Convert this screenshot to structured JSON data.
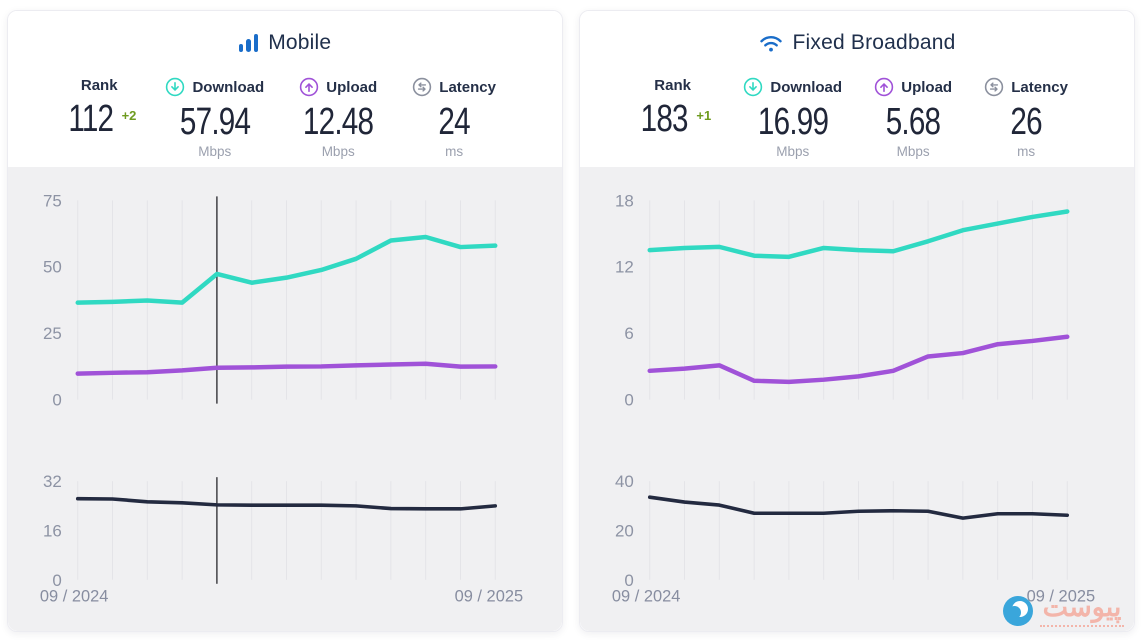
{
  "colors": {
    "teal": "#30d9c2",
    "purple": "#a052d8",
    "latency_navy": "#232a40",
    "blue_icon": "#1a6dc9",
    "green_delta": "#6e9b1f",
    "chart_bg": "#f0f0f2"
  },
  "panels": [
    {
      "title": "Mobile",
      "title_icon": "signal-bars-icon",
      "stats": [
        {
          "label": "Rank",
          "value": "112",
          "delta": "+2"
        },
        {
          "label": "Download",
          "value": "57.94",
          "unit": "Mbps",
          "icon": "download-circle-icon"
        },
        {
          "label": "Upload",
          "value": "12.48",
          "unit": "Mbps",
          "icon": "upload-circle-icon"
        },
        {
          "label": "Latency",
          "value": "24",
          "unit": "ms",
          "icon": "latency-arrows-icon"
        }
      ]
    },
    {
      "title": "Fixed Broadband",
      "title_icon": "wifi-icon",
      "stats": [
        {
          "label": "Rank",
          "value": "183",
          "delta": "+1"
        },
        {
          "label": "Download",
          "value": "16.99",
          "unit": "Mbps",
          "icon": "download-circle-icon"
        },
        {
          "label": "Upload",
          "value": "5.68",
          "unit": "Mbps",
          "icon": "upload-circle-icon"
        },
        {
          "label": "Latency",
          "value": "26",
          "unit": "ms",
          "icon": "latency-arrows-icon"
        }
      ]
    }
  ],
  "chart_data": [
    {
      "type": "line",
      "kind": "speed",
      "panel": "Mobile",
      "x_unit": "month",
      "x_range": [
        "09 / 2024",
        "09 / 2025"
      ],
      "ylim": [
        0,
        75
      ],
      "yticks": [
        75,
        50,
        25,
        0
      ],
      "grid": true,
      "crosshair_index": 4,
      "series": [
        {
          "name": "Download (Mbps)",
          "color": "#30d9c2",
          "values": [
            36.5,
            36.8,
            37.3,
            36.5,
            47.3,
            44.0,
            45.9,
            48.8,
            53.0,
            59.9,
            61.2,
            57.4,
            57.94
          ]
        },
        {
          "name": "Upload (Mbps)",
          "color": "#a052d8",
          "values": [
            9.8,
            10.1,
            10.3,
            11.0,
            12.0,
            12.1,
            12.4,
            12.5,
            12.9,
            13.2,
            13.5,
            12.4,
            12.48
          ]
        }
      ]
    },
    {
      "type": "line",
      "kind": "latency",
      "panel": "Mobile",
      "x_unit": "month",
      "x_labels": [
        "09 / 2024",
        "09 / 2025"
      ],
      "ylim": [
        0,
        32
      ],
      "yticks": [
        32,
        16,
        0
      ],
      "grid": true,
      "crosshair_index": 4,
      "series": [
        {
          "name": "Latency (ms)",
          "color": "#232a40",
          "values": [
            26.3,
            26.2,
            25.3,
            25.0,
            24.3,
            24.2,
            24.2,
            24.2,
            24.0,
            23.1,
            23.0,
            23.0,
            24.0
          ]
        }
      ]
    },
    {
      "type": "line",
      "kind": "speed",
      "panel": "Fixed Broadband",
      "x_unit": "month",
      "x_range": [
        "09 / 2024",
        "09 / 2025"
      ],
      "ylim": [
        0,
        18
      ],
      "yticks": [
        18,
        12,
        6,
        0
      ],
      "grid": true,
      "crosshair_index": null,
      "series": [
        {
          "name": "Download (Mbps)",
          "color": "#30d9c2",
          "values": [
            13.5,
            13.7,
            13.8,
            13.0,
            12.9,
            13.7,
            13.5,
            13.4,
            14.3,
            15.3,
            15.9,
            16.5,
            16.99
          ]
        },
        {
          "name": "Upload (Mbps)",
          "color": "#a052d8",
          "values": [
            2.6,
            2.8,
            3.1,
            1.7,
            1.6,
            1.8,
            2.1,
            2.6,
            3.9,
            4.2,
            5.0,
            5.3,
            5.68
          ]
        }
      ]
    },
    {
      "type": "line",
      "kind": "latency",
      "panel": "Fixed Broadband",
      "x_unit": "month",
      "x_labels": [
        "09 / 2024",
        "09 / 2025"
      ],
      "ylim": [
        0,
        40
      ],
      "yticks": [
        40,
        20,
        0
      ],
      "grid": true,
      "crosshair_index": null,
      "series": [
        {
          "name": "Latency (ms)",
          "color": "#232a40",
          "values": [
            33.5,
            31.5,
            30.3,
            27.0,
            27.0,
            27.0,
            27.8,
            28.0,
            27.8,
            25.0,
            26.8,
            26.8,
            26.2
          ]
        }
      ]
    }
  ],
  "watermark": {
    "text": "پیوست"
  }
}
